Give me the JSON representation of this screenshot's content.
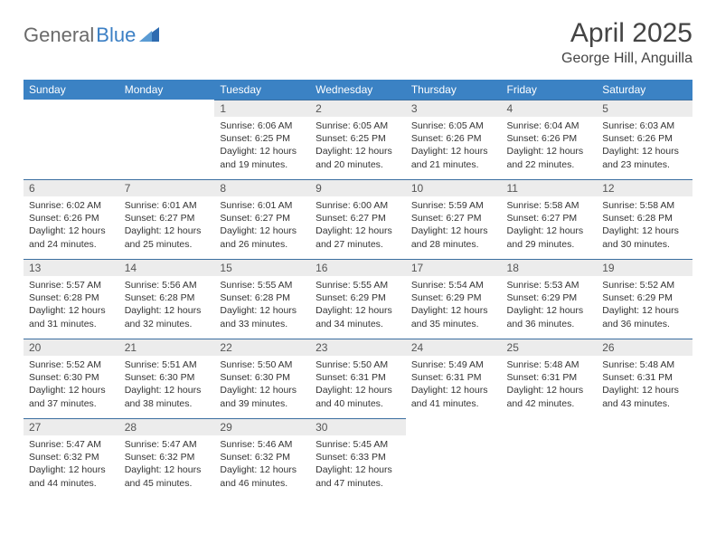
{
  "brand": {
    "part1": "General",
    "part2": "Blue"
  },
  "title": "April 2025",
  "location": "George Hill, Anguilla",
  "colors": {
    "header_bg": "#3b82c4",
    "header_text": "#ffffff",
    "daynum_bg": "#ececec",
    "row_border": "#3b6ea0",
    "brand_gray": "#6a6a6a",
    "brand_blue": "#3b7fc4"
  },
  "columns": [
    "Sunday",
    "Monday",
    "Tuesday",
    "Wednesday",
    "Thursday",
    "Friday",
    "Saturday"
  ],
  "weeks": [
    [
      null,
      null,
      {
        "n": "1",
        "sr": "6:06 AM",
        "ss": "6:25 PM",
        "dl": "12 hours and 19 minutes."
      },
      {
        "n": "2",
        "sr": "6:05 AM",
        "ss": "6:25 PM",
        "dl": "12 hours and 20 minutes."
      },
      {
        "n": "3",
        "sr": "6:05 AM",
        "ss": "6:26 PM",
        "dl": "12 hours and 21 minutes."
      },
      {
        "n": "4",
        "sr": "6:04 AM",
        "ss": "6:26 PM",
        "dl": "12 hours and 22 minutes."
      },
      {
        "n": "5",
        "sr": "6:03 AM",
        "ss": "6:26 PM",
        "dl": "12 hours and 23 minutes."
      }
    ],
    [
      {
        "n": "6",
        "sr": "6:02 AM",
        "ss": "6:26 PM",
        "dl": "12 hours and 24 minutes."
      },
      {
        "n": "7",
        "sr": "6:01 AM",
        "ss": "6:27 PM",
        "dl": "12 hours and 25 minutes."
      },
      {
        "n": "8",
        "sr": "6:01 AM",
        "ss": "6:27 PM",
        "dl": "12 hours and 26 minutes."
      },
      {
        "n": "9",
        "sr": "6:00 AM",
        "ss": "6:27 PM",
        "dl": "12 hours and 27 minutes."
      },
      {
        "n": "10",
        "sr": "5:59 AM",
        "ss": "6:27 PM",
        "dl": "12 hours and 28 minutes."
      },
      {
        "n": "11",
        "sr": "5:58 AM",
        "ss": "6:27 PM",
        "dl": "12 hours and 29 minutes."
      },
      {
        "n": "12",
        "sr": "5:58 AM",
        "ss": "6:28 PM",
        "dl": "12 hours and 30 minutes."
      }
    ],
    [
      {
        "n": "13",
        "sr": "5:57 AM",
        "ss": "6:28 PM",
        "dl": "12 hours and 31 minutes."
      },
      {
        "n": "14",
        "sr": "5:56 AM",
        "ss": "6:28 PM",
        "dl": "12 hours and 32 minutes."
      },
      {
        "n": "15",
        "sr": "5:55 AM",
        "ss": "6:28 PM",
        "dl": "12 hours and 33 minutes."
      },
      {
        "n": "16",
        "sr": "5:55 AM",
        "ss": "6:29 PM",
        "dl": "12 hours and 34 minutes."
      },
      {
        "n": "17",
        "sr": "5:54 AM",
        "ss": "6:29 PM",
        "dl": "12 hours and 35 minutes."
      },
      {
        "n": "18",
        "sr": "5:53 AM",
        "ss": "6:29 PM",
        "dl": "12 hours and 36 minutes."
      },
      {
        "n": "19",
        "sr": "5:52 AM",
        "ss": "6:29 PM",
        "dl": "12 hours and 36 minutes."
      }
    ],
    [
      {
        "n": "20",
        "sr": "5:52 AM",
        "ss": "6:30 PM",
        "dl": "12 hours and 37 minutes."
      },
      {
        "n": "21",
        "sr": "5:51 AM",
        "ss": "6:30 PM",
        "dl": "12 hours and 38 minutes."
      },
      {
        "n": "22",
        "sr": "5:50 AM",
        "ss": "6:30 PM",
        "dl": "12 hours and 39 minutes."
      },
      {
        "n": "23",
        "sr": "5:50 AM",
        "ss": "6:31 PM",
        "dl": "12 hours and 40 minutes."
      },
      {
        "n": "24",
        "sr": "5:49 AM",
        "ss": "6:31 PM",
        "dl": "12 hours and 41 minutes."
      },
      {
        "n": "25",
        "sr": "5:48 AM",
        "ss": "6:31 PM",
        "dl": "12 hours and 42 minutes."
      },
      {
        "n": "26",
        "sr": "5:48 AM",
        "ss": "6:31 PM",
        "dl": "12 hours and 43 minutes."
      }
    ],
    [
      {
        "n": "27",
        "sr": "5:47 AM",
        "ss": "6:32 PM",
        "dl": "12 hours and 44 minutes."
      },
      {
        "n": "28",
        "sr": "5:47 AM",
        "ss": "6:32 PM",
        "dl": "12 hours and 45 minutes."
      },
      {
        "n": "29",
        "sr": "5:46 AM",
        "ss": "6:32 PM",
        "dl": "12 hours and 46 minutes."
      },
      {
        "n": "30",
        "sr": "5:45 AM",
        "ss": "6:33 PM",
        "dl": "12 hours and 47 minutes."
      },
      null,
      null,
      null
    ]
  ],
  "labels": {
    "sunrise": "Sunrise:",
    "sunset": "Sunset:",
    "daylight": "Daylight:"
  }
}
